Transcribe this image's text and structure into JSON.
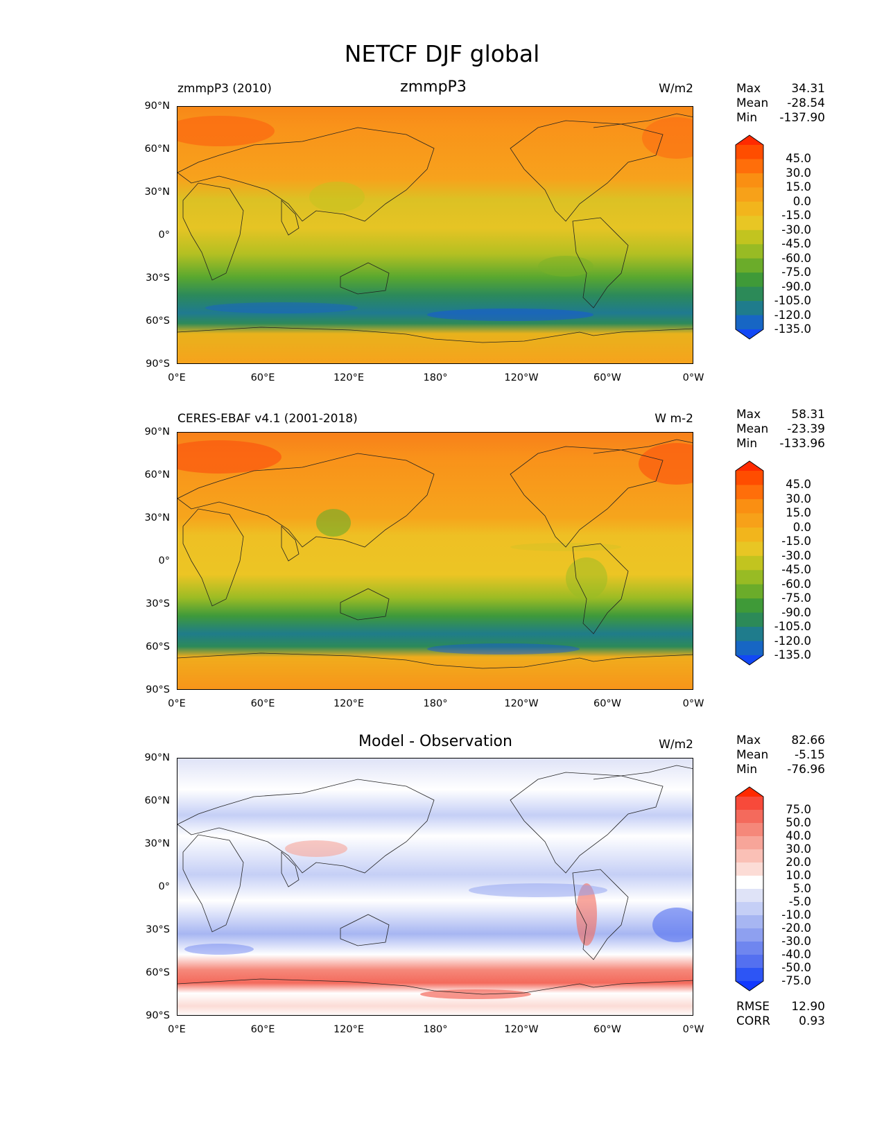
{
  "figure": {
    "title": "NETCF DJF global"
  },
  "axes": {
    "lat_ticks": [
      "90°N",
      "60°N",
      "30°N",
      "0°",
      "30°S",
      "60°S",
      "90°S"
    ],
    "lon_ticks": [
      "0°E",
      "60°E",
      "120°E",
      "180°",
      "120°W",
      "60°W",
      "0°W"
    ]
  },
  "panels": [
    {
      "left_title": "zmmpP3 (2010)",
      "center_title": "zmmpP3",
      "units": "W/m2",
      "stats": {
        "max_label": "Max",
        "max": "34.31",
        "mean_label": "Mean",
        "mean": "-28.54",
        "min_label": "Min",
        "min": "-137.90"
      }
    },
    {
      "left_title": "CERES-EBAF v4.1 (2001-2018)",
      "center_title": "",
      "units": "W m-2",
      "stats": {
        "max_label": "Max",
        "max": "58.31",
        "mean_label": "Mean",
        "mean": "-23.39",
        "min_label": "Min",
        "min": "-133.96"
      }
    },
    {
      "left_title": "",
      "center_title": "Model - Observation",
      "units": "W/m2",
      "stats": {
        "max_label": "Max",
        "max": "82.66",
        "mean_label": "Mean",
        "mean": "-5.15",
        "min_label": "Min",
        "min": "-76.96"
      },
      "metrics": {
        "rmse_label": "RMSE",
        "rmse": "12.90",
        "corr_label": "CORR",
        "corr": "0.93"
      }
    }
  ],
  "colorbars": {
    "field": {
      "labels": [
        "45.0",
        "30.0",
        "15.0",
        "0.0",
        "-15.0",
        "-30.0",
        "-45.0",
        "-60.0",
        "-75.0",
        "-90.0",
        "-105.0",
        "-120.0",
        "-135.0"
      ],
      "colors": [
        "#ff2a00",
        "#ff4d00",
        "#ff6e0a",
        "#fa8f12",
        "#f7a119",
        "#f2b51c",
        "#e8c624",
        "#c2c41f",
        "#98bb24",
        "#6bac2a",
        "#3f9a38",
        "#2c8a58",
        "#1f7c8c",
        "#1766c4",
        "#1248f5"
      ]
    },
    "diff": {
      "labels": [
        "75.0",
        "50.0",
        "40.0",
        "30.0",
        "20.0",
        "10.0",
        "5.0",
        "-5.0",
        "-10.0",
        "-20.0",
        "-30.0",
        "-40.0",
        "-50.0",
        "-75.0"
      ],
      "colors": [
        "#ff2a00",
        "#f74a3a",
        "#f46a5c",
        "#f5887a",
        "#f7a599",
        "#fac0b6",
        "#fcdcd6",
        "#ffffff",
        "#dfe3f7",
        "#c5cff6",
        "#a7b6f2",
        "#8ea0f0",
        "#6f86ef",
        "#5470f0",
        "#2d55f5",
        "#1238ff"
      ]
    }
  },
  "chart_data": {
    "type": "heatmap",
    "title": "NETCF DJF global",
    "lon_range": [
      0,
      360
    ],
    "lat_range": [
      -90,
      90
    ],
    "panels": [
      {
        "name": "zmmpP3 (2010)",
        "units": "W/m2",
        "levels": [
          -135,
          -120,
          -105,
          -90,
          -75,
          -60,
          -45,
          -30,
          -15,
          0,
          15,
          30,
          45
        ],
        "max": 34.31,
        "mean": -28.54,
        "min": -137.9
      },
      {
        "name": "CERES-EBAF v4.1 (2001-2018)",
        "units": "W m-2",
        "levels": [
          -135,
          -120,
          -105,
          -90,
          -75,
          -60,
          -45,
          -30,
          -15,
          0,
          15,
          30,
          45
        ],
        "max": 58.31,
        "mean": -23.39,
        "min": -133.96
      },
      {
        "name": "Model - Observation",
        "units": "W/m2",
        "levels": [
          -75,
          -50,
          -40,
          -30,
          -20,
          -10,
          -5,
          5,
          10,
          20,
          30,
          40,
          50,
          75
        ],
        "max": 82.66,
        "mean": -5.15,
        "min": -76.96,
        "rmse": 12.9,
        "corr": 0.93
      }
    ]
  }
}
